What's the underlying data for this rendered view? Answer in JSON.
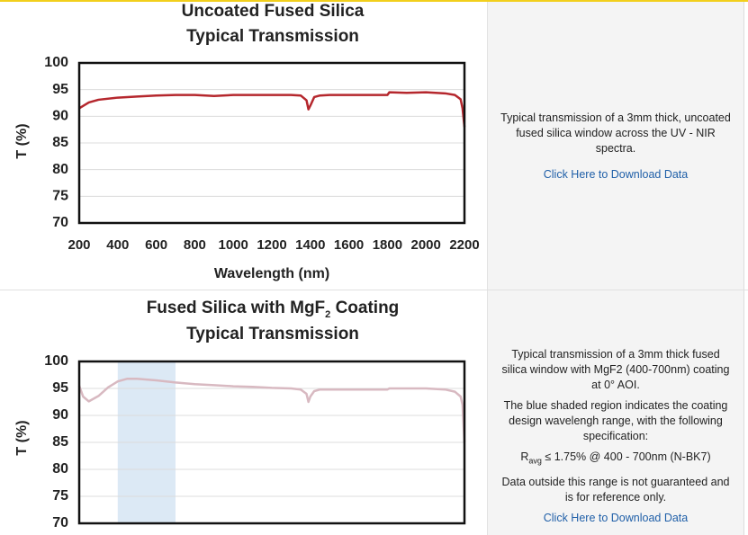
{
  "chart_data": [
    {
      "type": "line",
      "title": [
        "Uncoated Fused Silica"
      ],
      "subtitle": "Typical Transmission",
      "xlabel": "Wavelength (nm)",
      "ylabel": "T (%)",
      "color": "#b5272d",
      "grid": true,
      "xlim": [
        200,
        2200
      ],
      "ylim": [
        70,
        100
      ],
      "xticks": [
        200,
        400,
        600,
        800,
        1000,
        1200,
        1400,
        1600,
        1800,
        2000,
        2200
      ],
      "yticks": [
        70,
        75,
        80,
        85,
        90,
        95,
        100
      ],
      "x": [
        200,
        250,
        300,
        400,
        500,
        600,
        700,
        800,
        900,
        1000,
        1100,
        1200,
        1300,
        1350,
        1380,
        1390,
        1400,
        1420,
        1450,
        1500,
        1600,
        1700,
        1800,
        1810,
        1900,
        2000,
        2100,
        2150,
        2180,
        2190,
        2200
      ],
      "values": [
        91.5,
        92.6,
        93.1,
        93.5,
        93.7,
        93.9,
        94,
        94,
        93.8,
        94,
        94,
        94,
        94,
        93.9,
        93,
        91.3,
        92,
        93.6,
        93.9,
        94,
        94,
        94,
        94,
        94.5,
        94.4,
        94.5,
        94.3,
        94,
        93.2,
        91.5,
        88
      ]
    },
    {
      "type": "line",
      "title": [
        "Fused Silica with MgF",
        "2",
        " Coating"
      ],
      "subtitle": "Typical Transmission",
      "ylabel": "T (%)",
      "color": "#d8b9c1",
      "grid": true,
      "shaded_range": [
        400,
        700
      ],
      "shaded_color": "#dce9f5",
      "xlim": [
        200,
        2200
      ],
      "ylim": [
        70,
        100
      ],
      "yticks": [
        70,
        75,
        80,
        85,
        90,
        95,
        100
      ],
      "x": [
        200,
        220,
        250,
        300,
        350,
        400,
        450,
        500,
        600,
        700,
        800,
        900,
        1000,
        1100,
        1200,
        1300,
        1350,
        1380,
        1390,
        1400,
        1420,
        1450,
        1500,
        1600,
        1700,
        1800,
        1810,
        1900,
        2000,
        2100,
        2150,
        2180,
        2190,
        2200
      ],
      "values": [
        95.5,
        93.5,
        92.6,
        93.6,
        95.2,
        96.3,
        96.8,
        96.8,
        96.5,
        96.1,
        95.8,
        95.6,
        95.4,
        95.3,
        95.1,
        95,
        94.8,
        94,
        92.5,
        93.5,
        94.5,
        94.8,
        94.8,
        94.8,
        94.8,
        94.8,
        95,
        95,
        95,
        94.8,
        94.4,
        93.5,
        92,
        85
      ]
    }
  ],
  "info_panels": [
    {
      "text": "Typical transmission of a 3mm thick, uncoated fused silica window across the UV - NIR spectra.",
      "link": "Click Here to Download Data"
    },
    {
      "paragraphs": [
        "Typical transmission of a 3mm thick fused silica window with MgF2 (400-700nm) coating at 0° AOI.",
        "The blue shaded region indicates the coating design wavelengh range, with the following specification:"
      ],
      "spec": {
        "symbol": "R",
        "subscript": "avg",
        "text": " ≤ 1.75% @ 400 - 700nm (N-BK7)"
      },
      "note": "Data outside this range is not guaranteed and is for reference only.",
      "link": "Click Here to Download Data"
    }
  ]
}
